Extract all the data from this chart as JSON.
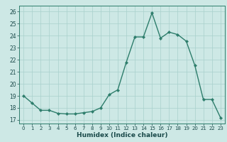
{
  "x": [
    0,
    1,
    2,
    3,
    4,
    5,
    6,
    7,
    8,
    9,
    10,
    11,
    12,
    13,
    14,
    15,
    16,
    17,
    18,
    19,
    20,
    21,
    22,
    23
  ],
  "y": [
    19.0,
    18.4,
    17.8,
    17.8,
    17.55,
    17.5,
    17.5,
    17.6,
    17.7,
    18.0,
    19.1,
    19.5,
    21.8,
    23.9,
    23.9,
    25.9,
    23.8,
    24.3,
    24.1,
    23.55,
    21.55,
    18.7,
    18.7,
    17.2
  ],
  "xlabel": "Humidex (Indice chaleur)",
  "xlim": [
    -0.5,
    23.5
  ],
  "ylim": [
    16.7,
    26.5
  ],
  "yticks": [
    17,
    18,
    19,
    20,
    21,
    22,
    23,
    24,
    25,
    26
  ],
  "xticks": [
    0,
    1,
    2,
    3,
    4,
    5,
    6,
    7,
    8,
    9,
    10,
    11,
    12,
    13,
    14,
    15,
    16,
    17,
    18,
    19,
    20,
    21,
    22,
    23
  ],
  "line_color": "#2d7d6b",
  "bg_color": "#cde8e5",
  "grid_color": "#a8d0cc",
  "axes_bg": "#cde8e5"
}
